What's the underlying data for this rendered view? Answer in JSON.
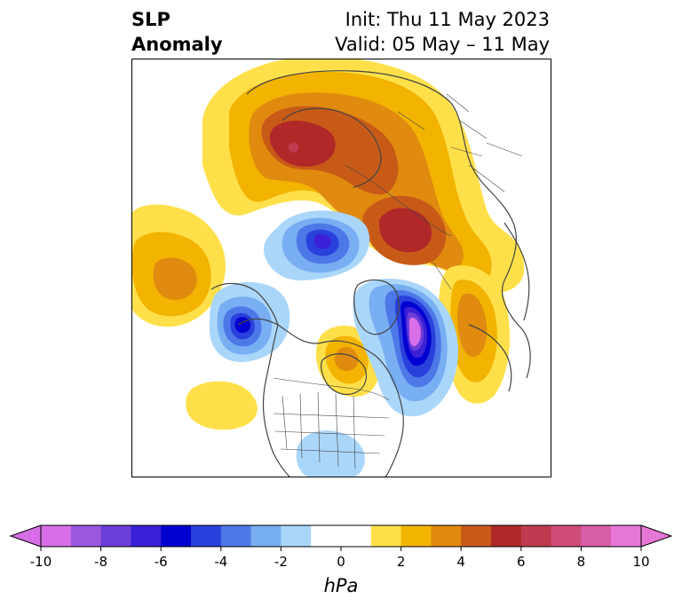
{
  "title": {
    "left_line1": "SLP",
    "left_line2": "Anomaly",
    "right_line1": "Init: Thu 11 May 2023",
    "right_line2": "Valid: 05 May – 11 May"
  },
  "colorbar": {
    "unit": "hPa",
    "ticks": [
      "-10",
      "-8",
      "-6",
      "-4",
      "-2",
      "0",
      "2",
      "4",
      "6",
      "8",
      "10"
    ],
    "bins": [
      "#d86fe8",
      "#9a58e0",
      "#6c3ed8",
      "#3a20d6",
      "#0000d0",
      "#2a40dc",
      "#4c78e8",
      "#78aef2",
      "#aad6fa",
      "#ffffff",
      "#ffffff",
      "#ffe04a",
      "#f2b400",
      "#e08a10",
      "#c85a18",
      "#b02828",
      "#c03a50",
      "#d04c78",
      "#d85ea8",
      "#e878d8"
    ],
    "under_color": "#d86fe8",
    "over_color": "#e878d8"
  }
}
